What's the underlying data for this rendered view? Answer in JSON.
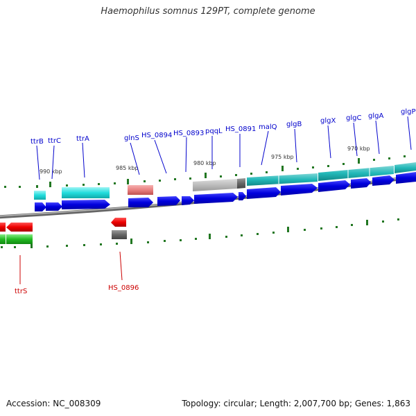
{
  "title": "Haemophilus somnus 129PT, complete genome",
  "footer": {
    "accession_label": "Accession: ",
    "accession": "NC_008309",
    "topology_label": "Topology: ",
    "topology": "circular",
    "length_label": "; Length: ",
    "length": "2,007,700 bp",
    "genes_label": "; Genes: ",
    "genes": "1,863"
  },
  "colors": {
    "backbone": "#808080",
    "cds_forward": "#0000dd",
    "cds_reverse": "#ee0000",
    "operon_cyan": "#22dddd",
    "operon_teal": "#22b8b8",
    "operon_green": "#22bb22",
    "pseudo_salmon": "#e88080",
    "gray_feature": "#bbbbbb",
    "dark_feature": "#666666",
    "tick": "#227722",
    "label_forward": "#0000cc",
    "label_reverse": "#cc0000"
  },
  "scale_labels": [
    "990 kbp",
    "985 kbp",
    "980 kbp",
    "975 kbp",
    "970 kbp"
  ],
  "forward_gene_labels": [
    "ttrB",
    "ttrC",
    "ttrA",
    "glnS",
    "HS_0894",
    "HS_0893",
    "pqqL",
    "HS_0891",
    "malQ",
    "glgB",
    "glgX",
    "glgC",
    "glgA",
    "glgP"
  ],
  "reverse_gene_labels": [
    "ttrS",
    "HS_0896"
  ]
}
